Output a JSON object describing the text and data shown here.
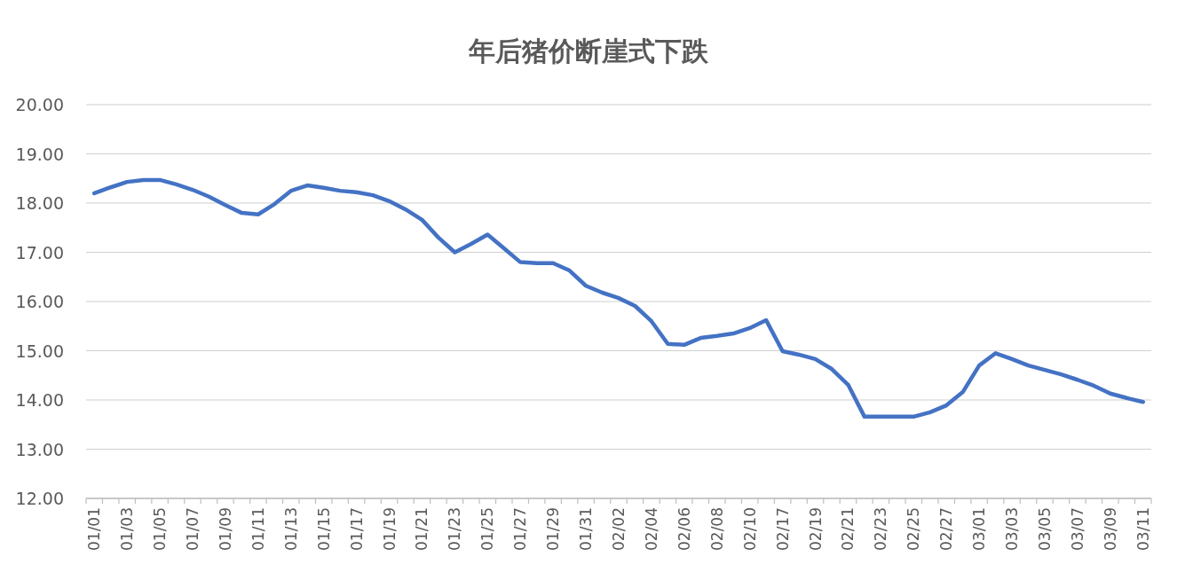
{
  "chart_data": {
    "type": "line",
    "title": "年后猪价断崖式下跌",
    "categories": [
      "01/01",
      null,
      "01/03",
      null,
      "01/05",
      null,
      "01/07",
      null,
      "01/09",
      null,
      "01/11",
      null,
      "01/13",
      null,
      "01/15",
      null,
      "01/17",
      null,
      "01/19",
      null,
      "01/21",
      null,
      "01/23",
      null,
      "01/25",
      null,
      "01/27",
      null,
      "01/29",
      null,
      "01/31",
      null,
      "02/02",
      null,
      "02/04",
      null,
      "02/06",
      null,
      "02/08",
      null,
      "02/10",
      null,
      "02/17",
      null,
      "02/19",
      null,
      "02/21",
      null,
      "02/23",
      null,
      "02/25",
      null,
      "02/27",
      null,
      "03/01",
      null,
      "03/03",
      null,
      "03/05",
      null,
      "03/07",
      null,
      "03/09",
      null,
      "03/11"
    ],
    "values": [
      18.2,
      18.32,
      18.43,
      18.47,
      18.47,
      18.38,
      18.27,
      18.13,
      17.96,
      17.8,
      17.77,
      17.98,
      18.25,
      18.36,
      18.31,
      18.25,
      18.22,
      18.16,
      18.04,
      17.87,
      17.66,
      17.3,
      17.0,
      17.17,
      17.36,
      17.08,
      16.8,
      16.78,
      16.78,
      16.63,
      16.32,
      16.18,
      16.07,
      15.91,
      15.6,
      15.14,
      15.12,
      15.26,
      15.3,
      15.35,
      15.46,
      15.62,
      14.99,
      14.92,
      14.83,
      14.63,
      14.31,
      13.66,
      13.66,
      13.66,
      13.66,
      13.75,
      13.89,
      14.16,
      14.7,
      14.95,
      14.83,
      14.7,
      14.61,
      14.52,
      14.41,
      14.29,
      14.13,
      14.04,
      13.96
    ],
    "color": "#4472c4",
    "ylim": [
      12,
      20
    ],
    "yticks": [
      {
        "value": 12,
        "label": "12.00"
      },
      {
        "value": 13,
        "label": "13.00"
      },
      {
        "value": 14,
        "label": "14.00"
      },
      {
        "value": 15,
        "label": "15.00"
      },
      {
        "value": 16,
        "label": "16.00"
      },
      {
        "value": 17,
        "label": "17.00"
      },
      {
        "value": 18,
        "label": "18.00"
      },
      {
        "value": 19,
        "label": "19.00"
      },
      {
        "value": 20,
        "label": "20.00"
      }
    ],
    "grid": "y"
  }
}
